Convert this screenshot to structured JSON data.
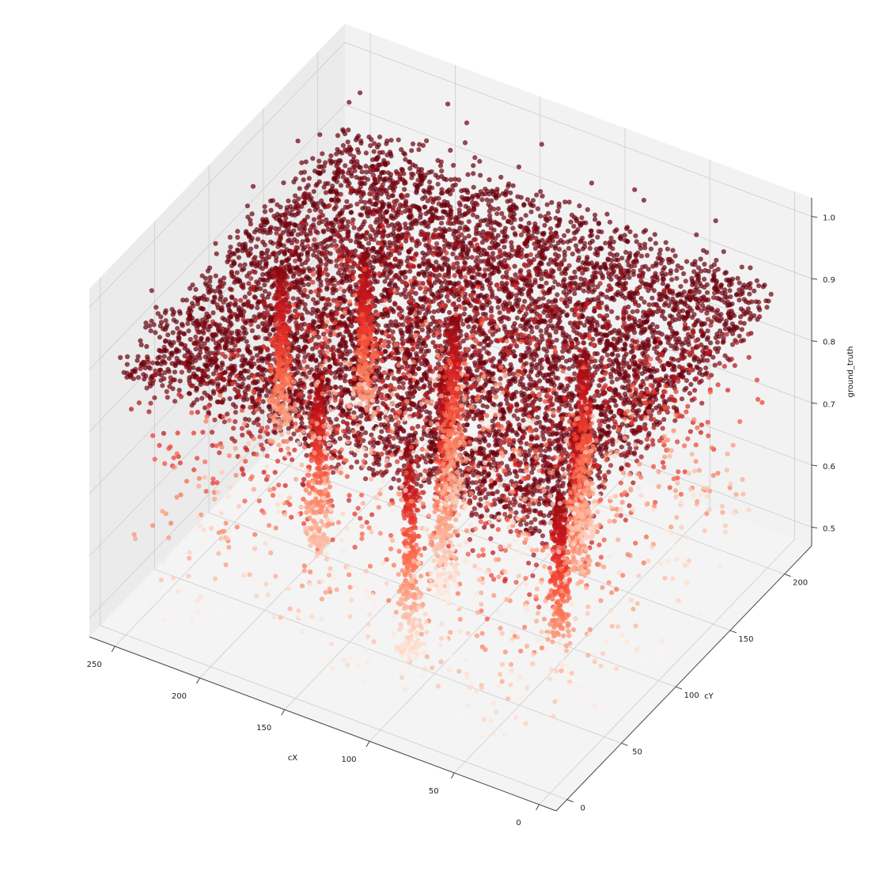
{
  "chart_data": {
    "type": "scatter",
    "projection": "3d",
    "title": "",
    "xlabel": "cX",
    "ylabel": "cY",
    "zlabel": "ground_truth",
    "x_ticks": [
      "250",
      "200",
      "150",
      "100",
      "50",
      "0"
    ],
    "y_ticks": [
      "0",
      "50",
      "100",
      "150",
      "200"
    ],
    "z_ticks": [
      "0.5",
      "0.6",
      "0.7",
      "0.8",
      "0.9",
      "1.0"
    ],
    "xlim": [
      -10,
      265
    ],
    "ylim": [
      -10,
      225
    ],
    "zlim": [
      0.47,
      1.03
    ],
    "grid": true,
    "legend": "none",
    "colormap": "Reds",
    "color_by": "ground_truth",
    "marker_alpha": 0.6,
    "plateau": {
      "cx_range": [
        0,
        255
      ],
      "cy_range": [
        0,
        210
      ],
      "ground_truth_range": [
        0.86,
        0.92
      ]
    },
    "drip_columns": [
      {
        "cx": 20,
        "cy": 40,
        "ground_truth_range": [
          0.62,
          0.86
        ]
      },
      {
        "cx": 45,
        "cy": 95,
        "ground_truth_range": [
          0.6,
          0.86
        ]
      },
      {
        "cx": 70,
        "cy": 140,
        "ground_truth_range": [
          0.55,
          0.86
        ]
      },
      {
        "cx": 105,
        "cy": 35,
        "ground_truth_range": [
          0.52,
          0.86
        ]
      },
      {
        "cx": 120,
        "cy": 90,
        "ground_truth_range": [
          0.5,
          0.86
        ]
      },
      {
        "cx": 140,
        "cy": 130,
        "ground_truth_range": [
          0.55,
          0.86
        ]
      },
      {
        "cx": 175,
        "cy": 60,
        "ground_truth_range": [
          0.58,
          0.86
        ]
      },
      {
        "cx": 205,
        "cy": 150,
        "ground_truth_range": [
          0.6,
          0.86
        ]
      },
      {
        "cx": 235,
        "cy": 120,
        "ground_truth_range": [
          0.6,
          0.86
        ]
      }
    ],
    "point_count_approx": 12000
  },
  "colors": {
    "pane_back": "#ebebeb",
    "pane_side": "#f2f2f2",
    "pane_floor": "#f4f4f4",
    "grid": "#cccccc",
    "axis": "#444444",
    "cmap_low": "#fff5f0",
    "cmap_mid": "#fb6a4a",
    "cmap_high": "#67000d"
  }
}
